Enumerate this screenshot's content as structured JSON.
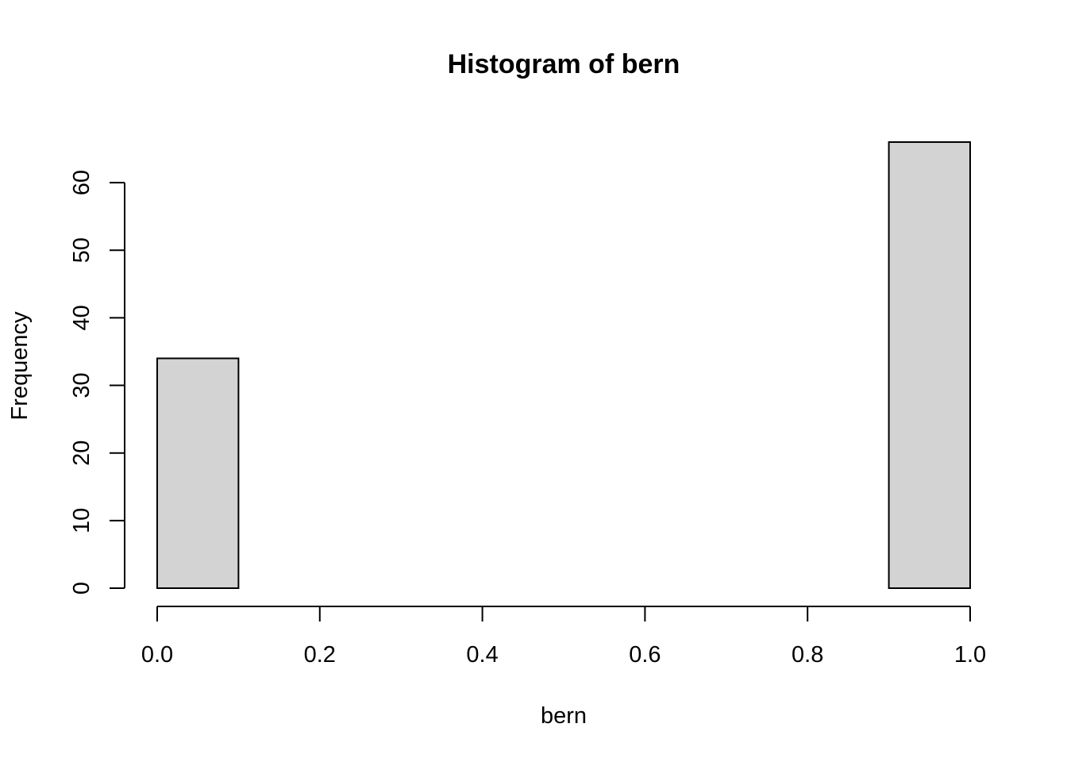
{
  "chart_data": {
    "type": "bar",
    "title": "Histogram of bern",
    "xlabel": "bern",
    "ylabel": "Frequency",
    "bins": [
      {
        "start": 0.0,
        "end": 0.1,
        "count": 34
      },
      {
        "start": 0.1,
        "end": 0.2,
        "count": 0
      },
      {
        "start": 0.2,
        "end": 0.3,
        "count": 0
      },
      {
        "start": 0.3,
        "end": 0.4,
        "count": 0
      },
      {
        "start": 0.4,
        "end": 0.5,
        "count": 0
      },
      {
        "start": 0.5,
        "end": 0.6,
        "count": 0
      },
      {
        "start": 0.6,
        "end": 0.7,
        "count": 0
      },
      {
        "start": 0.7,
        "end": 0.8,
        "count": 0
      },
      {
        "start": 0.8,
        "end": 0.9,
        "count": 0
      },
      {
        "start": 0.9,
        "end": 1.0,
        "count": 66
      }
    ],
    "xlim": [
      0.0,
      1.0
    ],
    "ylim": [
      0,
      66
    ],
    "x_ticks": [
      "0.0",
      "0.2",
      "0.4",
      "0.6",
      "0.8",
      "1.0"
    ],
    "y_ticks": [
      "0",
      "10",
      "20",
      "30",
      "40",
      "50",
      "60"
    ],
    "bar_color": "#d3d3d3",
    "grid": false
  }
}
